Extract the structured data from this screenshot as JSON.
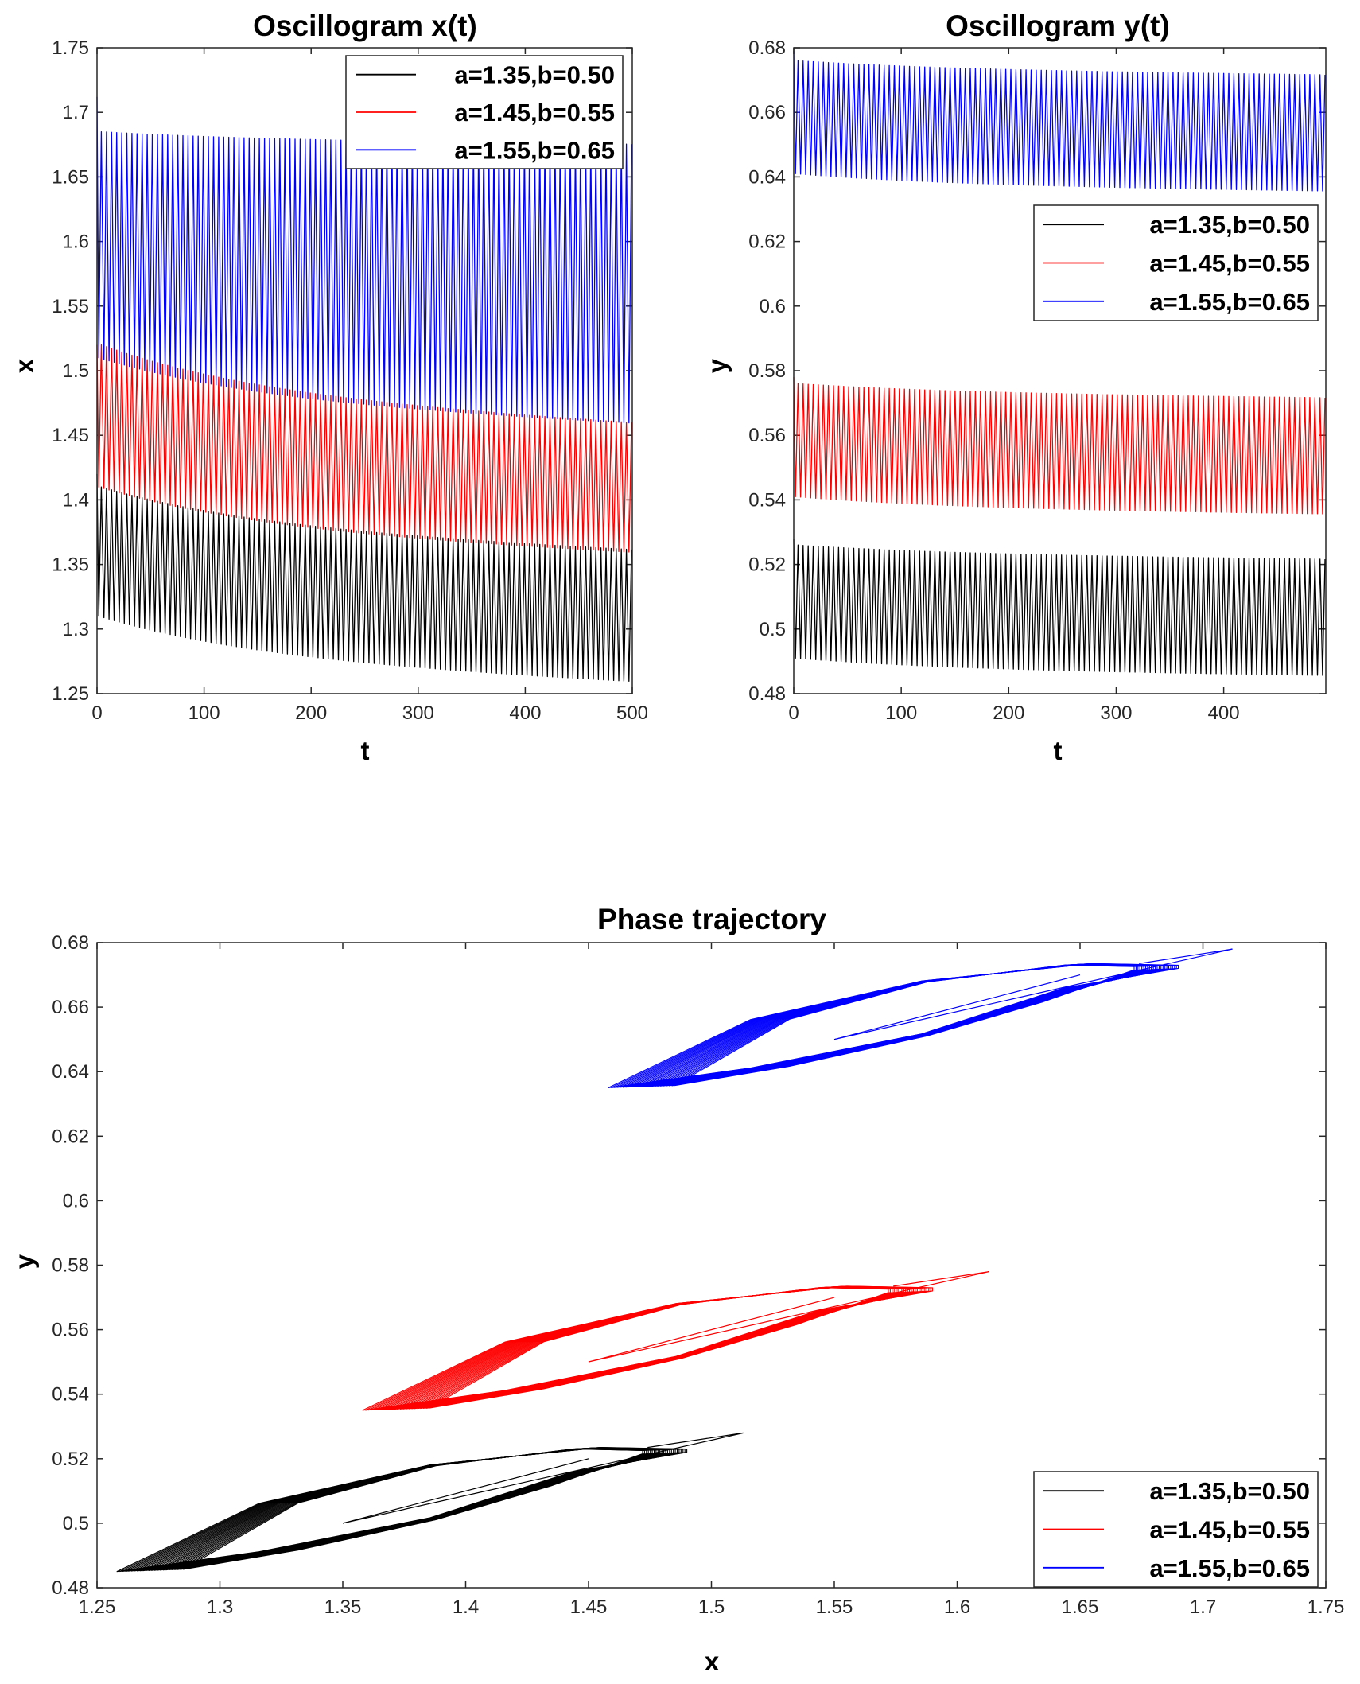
{
  "chart_data": [
    {
      "id": "osc_x",
      "type": "line",
      "title": "Oscillogram x(t)",
      "xlabel": "t",
      "ylabel": "x",
      "xlim": [
        0,
        500
      ],
      "ylim": [
        1.25,
        1.75
      ],
      "xticks": [
        0,
        100,
        200,
        300,
        400,
        500
      ],
      "yticks": [
        1.25,
        1.3,
        1.35,
        1.4,
        1.45,
        1.5,
        1.55,
        1.6,
        1.65,
        1.7,
        1.75
      ],
      "legend_position": "top-right",
      "cycles": 105,
      "series": [
        {
          "name": "a=1.35,b=0.50",
          "color": "#000000",
          "start": 1.42,
          "start_min": 1.31,
          "start_max": 1.41,
          "end_min": 1.258,
          "end_max": 1.36
        },
        {
          "name": "a=1.45,b=0.55",
          "color": "#ff0000",
          "start": 1.52,
          "start_min": 1.41,
          "start_max": 1.52,
          "end_min": 1.358,
          "end_max": 1.458
        },
        {
          "name": "a=1.55,b=0.65",
          "color": "#0000ff",
          "start": 1.712,
          "start_min": 1.51,
          "start_max": 1.685,
          "end_min": 1.458,
          "end_max": 1.675
        }
      ]
    },
    {
      "id": "osc_y",
      "type": "line",
      "title": "Oscillogram y(t)",
      "xlabel": "t",
      "ylabel": "y",
      "xlim": [
        0,
        495
      ],
      "ylim": [
        0.48,
        0.68
      ],
      "xticks": [
        0,
        100,
        200,
        300,
        400
      ],
      "yticks": [
        0.48,
        0.5,
        0.52,
        0.54,
        0.56,
        0.58,
        0.6,
        0.62,
        0.64,
        0.66,
        0.68
      ],
      "legend_position": "upper-right",
      "cycles": 105,
      "series": [
        {
          "name": "a=1.35,b=0.50",
          "color": "#000000",
          "start": 0.528,
          "start_min": 0.491,
          "start_max": 0.526,
          "end_min": 0.4855,
          "end_max": 0.5215
        },
        {
          "name": "a=1.45,b=0.55",
          "color": "#ff0000",
          "start": 0.578,
          "start_min": 0.541,
          "start_max": 0.576,
          "end_min": 0.5355,
          "end_max": 0.5715
        },
        {
          "name": "a=1.55,b=0.65",
          "color": "#0000ff",
          "start": 0.679,
          "start_min": 0.641,
          "start_max": 0.676,
          "end_min": 0.6355,
          "end_max": 0.6715
        }
      ]
    },
    {
      "id": "phase",
      "type": "line",
      "title": "Phase trajectory",
      "xlabel": "x",
      "ylabel": "y",
      "xlim": [
        1.25,
        1.75
      ],
      "ylim": [
        0.48,
        0.68
      ],
      "xticks": [
        1.25,
        1.3,
        1.35,
        1.4,
        1.45,
        1.5,
        1.55,
        1.6,
        1.65,
        1.7,
        1.75
      ],
      "yticks": [
        0.48,
        0.5,
        0.52,
        0.54,
        0.56,
        0.58,
        0.6,
        0.62,
        0.64,
        0.66,
        0.68
      ],
      "legend_position": "bottom-right",
      "series": [
        {
          "name": "a=1.35,b=0.50",
          "color": "#000000",
          "start": [
            1.35,
            0.5
          ],
          "tip": [
            1.513,
            0.528
          ],
          "min_point": [
            1.258,
            0.485
          ],
          "max_point": [
            1.48,
            0.522
          ]
        },
        {
          "name": "a=1.45,b=0.55",
          "color": "#ff0000",
          "start": [
            1.45,
            0.55
          ],
          "tip": [
            1.613,
            0.578
          ],
          "min_point": [
            1.358,
            0.535
          ],
          "max_point": [
            1.58,
            0.572
          ]
        },
        {
          "name": "a=1.55,b=0.65",
          "color": "#0000ff",
          "start": [
            1.55,
            0.65
          ],
          "tip": [
            1.712,
            0.678
          ],
          "min_point": [
            1.458,
            0.635
          ],
          "max_point": [
            1.68,
            0.672
          ]
        }
      ]
    }
  ]
}
